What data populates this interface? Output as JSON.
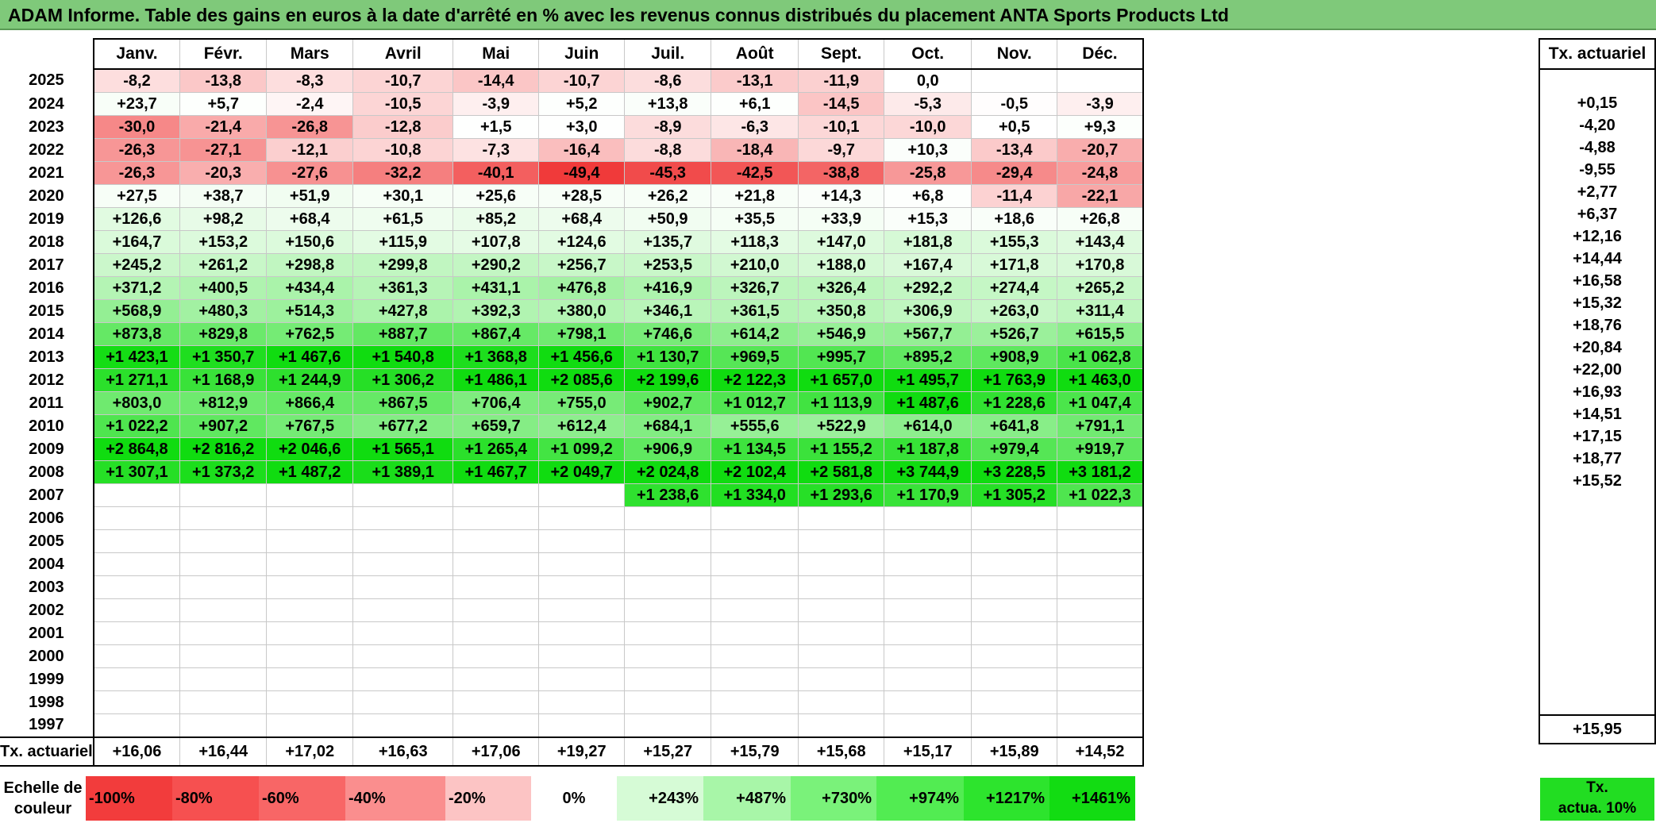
{
  "title": "ADAM Informe. Table des gains en euros à la date d'arrêté en % avec les revenus connus distribués du placement ANTA Sports Products Ltd",
  "months": [
    "Janv.",
    "Févr.",
    "Mars",
    "Avril",
    "Mai",
    "Juin",
    "Juil.",
    "Août",
    "Sept.",
    "Oct.",
    "Nov.",
    "Déc."
  ],
  "side_header": "Tx. actuariel",
  "rows": [
    {
      "year": "2025",
      "values": [
        "-8,2",
        "-13,8",
        "-8,3",
        "-10,7",
        "-14,4",
        "-10,7",
        "-8,6",
        "-13,1",
        "-11,9",
        "0,0",
        "",
        ""
      ],
      "rate": ""
    },
    {
      "year": "2024",
      "values": [
        "+23,7",
        "+5,7",
        "-2,4",
        "-10,5",
        "-3,9",
        "+5,2",
        "+13,8",
        "+6,1",
        "-14,5",
        "-5,3",
        "-0,5",
        "-3,9"
      ],
      "rate": "+0,15"
    },
    {
      "year": "2023",
      "values": [
        "-30,0",
        "-21,4",
        "-26,8",
        "-12,8",
        "+1,5",
        "+3,0",
        "-8,9",
        "-6,3",
        "-10,1",
        "-10,0",
        "+0,5",
        "+9,3"
      ],
      "rate": "-4,20"
    },
    {
      "year": "2022",
      "values": [
        "-26,3",
        "-27,1",
        "-12,1",
        "-10,8",
        "-7,3",
        "-16,4",
        "-8,8",
        "-18,4",
        "-9,7",
        "+10,3",
        "-13,4",
        "-20,7"
      ],
      "rate": "-4,88"
    },
    {
      "year": "2021",
      "values": [
        "-26,3",
        "-20,3",
        "-27,6",
        "-32,2",
        "-40,1",
        "-49,4",
        "-45,3",
        "-42,5",
        "-38,8",
        "-25,8",
        "-29,4",
        "-24,8"
      ],
      "rate": "-9,55"
    },
    {
      "year": "2020",
      "values": [
        "+27,5",
        "+38,7",
        "+51,9",
        "+30,1",
        "+25,6",
        "+28,5",
        "+26,2",
        "+21,8",
        "+14,3",
        "+6,8",
        "-11,4",
        "-22,1"
      ],
      "rate": "+2,77"
    },
    {
      "year": "2019",
      "values": [
        "+126,6",
        "+98,2",
        "+68,4",
        "+61,5",
        "+85,2",
        "+68,4",
        "+50,9",
        "+35,5",
        "+33,9",
        "+15,3",
        "+18,6",
        "+26,8"
      ],
      "rate": "+6,37"
    },
    {
      "year": "2018",
      "values": [
        "+164,7",
        "+153,2",
        "+150,6",
        "+115,9",
        "+107,8",
        "+124,6",
        "+135,7",
        "+118,3",
        "+147,0",
        "+181,8",
        "+155,3",
        "+143,4"
      ],
      "rate": "+12,16"
    },
    {
      "year": "2017",
      "values": [
        "+245,2",
        "+261,2",
        "+298,8",
        "+299,8",
        "+290,2",
        "+256,7",
        "+253,5",
        "+210,0",
        "+188,0",
        "+167,4",
        "+171,8",
        "+170,8"
      ],
      "rate": "+14,44"
    },
    {
      "year": "2016",
      "values": [
        "+371,2",
        "+400,5",
        "+434,4",
        "+361,3",
        "+431,1",
        "+476,8",
        "+416,9",
        "+326,7",
        "+326,4",
        "+292,2",
        "+274,4",
        "+265,2"
      ],
      "rate": "+16,58"
    },
    {
      "year": "2015",
      "values": [
        "+568,9",
        "+480,3",
        "+514,3",
        "+427,8",
        "+392,3",
        "+380,0",
        "+346,1",
        "+361,5",
        "+350,8",
        "+306,9",
        "+263,0",
        "+311,4"
      ],
      "rate": "+15,32"
    },
    {
      "year": "2014",
      "values": [
        "+873,8",
        "+829,8",
        "+762,5",
        "+887,7",
        "+867,4",
        "+798,1",
        "+746,6",
        "+614,2",
        "+546,9",
        "+567,7",
        "+526,7",
        "+615,5"
      ],
      "rate": "+18,76"
    },
    {
      "year": "2013",
      "values": [
        "+1 423,1",
        "+1 350,7",
        "+1 467,6",
        "+1 540,8",
        "+1 368,8",
        "+1 456,6",
        "+1 130,7",
        "+969,5",
        "+995,7",
        "+895,2",
        "+908,9",
        "+1 062,8"
      ],
      "rate": "+20,84"
    },
    {
      "year": "2012",
      "values": [
        "+1 271,1",
        "+1 168,9",
        "+1 244,9",
        "+1 306,2",
        "+1 486,1",
        "+2 085,6",
        "+2 199,6",
        "+2 122,3",
        "+1 657,0",
        "+1 495,7",
        "+1 763,9",
        "+1 463,0"
      ],
      "rate": "+22,00"
    },
    {
      "year": "2011",
      "values": [
        "+803,0",
        "+812,9",
        "+866,4",
        "+867,5",
        "+706,4",
        "+755,0",
        "+902,7",
        "+1 012,7",
        "+1 113,9",
        "+1 487,6",
        "+1 228,6",
        "+1 047,4"
      ],
      "rate": "+16,93"
    },
    {
      "year": "2010",
      "values": [
        "+1 022,2",
        "+907,2",
        "+767,5",
        "+677,2",
        "+659,7",
        "+612,4",
        "+684,1",
        "+555,6",
        "+522,9",
        "+614,0",
        "+641,8",
        "+791,1"
      ],
      "rate": "+14,51"
    },
    {
      "year": "2009",
      "values": [
        "+2 864,8",
        "+2 816,2",
        "+2 046,6",
        "+1 565,1",
        "+1 265,4",
        "+1 099,2",
        "+906,9",
        "+1 134,5",
        "+1 155,2",
        "+1 187,8",
        "+979,4",
        "+919,7"
      ],
      "rate": "+17,15"
    },
    {
      "year": "2008",
      "values": [
        "+1 307,1",
        "+1 373,2",
        "+1 487,2",
        "+1 389,1",
        "+1 467,7",
        "+2 049,7",
        "+2 024,8",
        "+2 102,4",
        "+2 581,8",
        "+3 744,9",
        "+3 228,5",
        "+3 181,2"
      ],
      "rate": "+18,77"
    },
    {
      "year": "2007",
      "values": [
        "",
        "",
        "",
        "",
        "",
        "",
        "+1 238,6",
        "+1 334,0",
        "+1 293,6",
        "+1 170,9",
        "+1 305,2",
        "+1 022,3"
      ],
      "rate": "+15,52"
    },
    {
      "year": "2006",
      "values": [
        "",
        "",
        "",
        "",
        "",
        "",
        "",
        "",
        "",
        "",
        "",
        ""
      ],
      "rate": ""
    },
    {
      "year": "2005",
      "values": [
        "",
        "",
        "",
        "",
        "",
        "",
        "",
        "",
        "",
        "",
        "",
        ""
      ],
      "rate": ""
    },
    {
      "year": "2004",
      "values": [
        "",
        "",
        "",
        "",
        "",
        "",
        "",
        "",
        "",
        "",
        "",
        ""
      ],
      "rate": ""
    },
    {
      "year": "2003",
      "values": [
        "",
        "",
        "",
        "",
        "",
        "",
        "",
        "",
        "",
        "",
        "",
        ""
      ],
      "rate": ""
    },
    {
      "year": "2002",
      "values": [
        "",
        "",
        "",
        "",
        "",
        "",
        "",
        "",
        "",
        "",
        "",
        ""
      ],
      "rate": ""
    },
    {
      "year": "2001",
      "values": [
        "",
        "",
        "",
        "",
        "",
        "",
        "",
        "",
        "",
        "",
        "",
        ""
      ],
      "rate": ""
    },
    {
      "year": "2000",
      "values": [
        "",
        "",
        "",
        "",
        "",
        "",
        "",
        "",
        "",
        "",
        "",
        ""
      ],
      "rate": ""
    },
    {
      "year": "1999",
      "values": [
        "",
        "",
        "",
        "",
        "",
        "",
        "",
        "",
        "",
        "",
        "",
        ""
      ],
      "rate": ""
    },
    {
      "year": "1998",
      "values": [
        "",
        "",
        "",
        "",
        "",
        "",
        "",
        "",
        "",
        "",
        "",
        ""
      ],
      "rate": ""
    },
    {
      "year": "1997",
      "values": [
        "",
        "",
        "",
        "",
        "",
        "",
        "",
        "",
        "",
        "",
        "",
        ""
      ],
      "rate": ""
    }
  ],
  "average_row": {
    "label": "Tx. actuariel",
    "values": [
      "+16,06",
      "+16,44",
      "+17,02",
      "+16,63",
      "+17,06",
      "+19,27",
      "+15,27",
      "+15,79",
      "+15,68",
      "+15,17",
      "+15,89",
      "+14,52"
    ],
    "rate": "+15,95"
  },
  "legend": {
    "label_line1": "Echelle de",
    "label_line2": "couleur",
    "steps": [
      {
        "text": "-100%",
        "color": "#f23c3c",
        "kind": "neg"
      },
      {
        "text": "-80%",
        "color": "#f65050",
        "kind": "neg"
      },
      {
        "text": "-60%",
        "color": "#f86666",
        "kind": "neg"
      },
      {
        "text": "-40%",
        "color": "#fa8e8e",
        "kind": "neg"
      },
      {
        "text": "-20%",
        "color": "#fcc4c4",
        "kind": "neg"
      },
      {
        "text": "0%",
        "color": "#ffffff",
        "kind": "zero"
      },
      {
        "text": "+243%",
        "color": "#d6fbd6",
        "kind": "pos"
      },
      {
        "text": "+487%",
        "color": "#a8f6a8",
        "kind": "pos"
      },
      {
        "text": "+730%",
        "color": "#7af27a",
        "kind": "pos"
      },
      {
        "text": "+974%",
        "color": "#52ec52",
        "kind": "pos"
      },
      {
        "text": "+1217%",
        "color": "#2de42d",
        "kind": "pos"
      },
      {
        "text": "+1461%",
        "color": "#12dc12",
        "kind": "pos"
      }
    ],
    "tx_box_line1": "Tx.",
    "tx_box_line2": "actua. 10%",
    "tx_box_color": "#22dd22"
  }
}
